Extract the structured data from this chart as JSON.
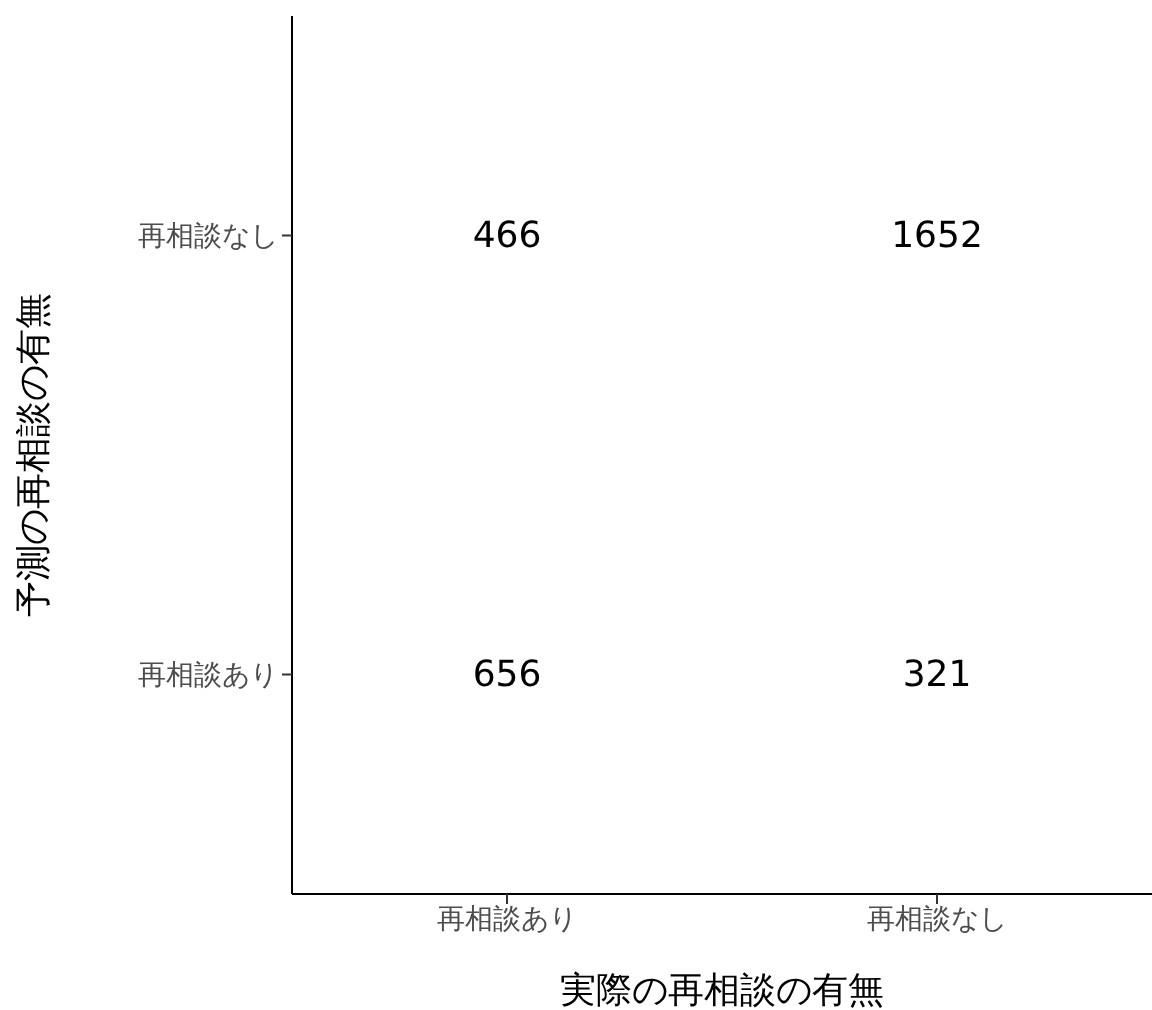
{
  "chart_data": {
    "type": "heatmap",
    "xlabel": "実際の再相談の有無",
    "ylabel": "予測の再相談の有無",
    "categories": [
      "再相談あり",
      "再相談なし"
    ],
    "y_categories": [
      "再相談なし",
      "再相談あり"
    ],
    "cells": [
      [
        466,
        1652
      ],
      [
        656,
        321
      ]
    ],
    "data_labels": true,
    "grid": false
  }
}
